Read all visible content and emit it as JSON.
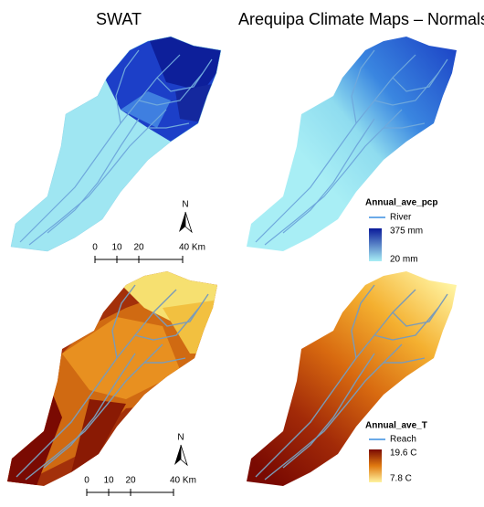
{
  "titles": {
    "left": "SWAT",
    "right": "Arequipa Climate Maps – Normals"
  },
  "panels": [
    {
      "north": "N",
      "scale": [
        "0",
        "10",
        "20",
        "40 Km"
      ]
    },
    {
      "north": "N",
      "scale": [
        "0",
        "10",
        "20",
        "40 Km"
      ]
    }
  ],
  "legends": [
    {
      "title": "Annual_ave_pcp",
      "line": "River",
      "max": "375 mm",
      "min": "20 mm"
    },
    {
      "title": "Annual_ave_T",
      "line": "Reach",
      "max": "19.6 C",
      "min": "7.8 C"
    }
  ]
}
